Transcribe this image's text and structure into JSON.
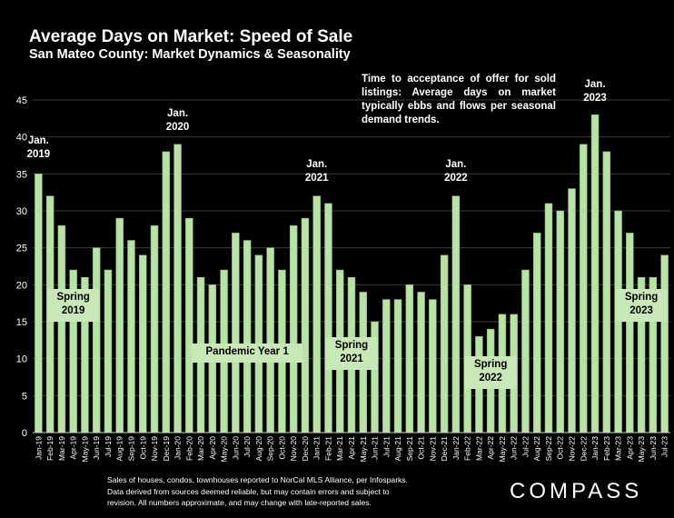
{
  "title": "Average Days on Market:  Speed of Sale",
  "subtitle": "San Mateo County: Market Dynamics & Seasonality",
  "note": "Time to acceptance of offer for sold listings: Average days on market typically ebbs and flows per seasonal demand trends.",
  "footnote": [
    "Sales of houses, condos, townhouses reported to NorCal MLS Alliance, per Infosparks.",
    "Data derived from sources deemed reliable, but may contain errors and subject to",
    "revision. All numbers approximate, and may change with late-reported sales."
  ],
  "logo": "COMPASS",
  "colors": {
    "background": "#000000",
    "bar": "#b9e2a6",
    "bar_edge": "#7fb36a",
    "label_box": "#c9e8b8",
    "text": "#ffffff"
  },
  "chart_data": {
    "type": "bar",
    "title": "Average Days on Market:  Speed of Sale",
    "subtitle": "San Mateo County: Market Dynamics & Seasonality",
    "xlabel": "",
    "ylabel": "",
    "ylim": [
      0,
      45
    ],
    "yticks": [
      0,
      5,
      10,
      15,
      20,
      25,
      30,
      35,
      40,
      45
    ],
    "grid": true,
    "legend": "none",
    "categories": [
      "Jan-19",
      "Feb-19",
      "Mar-19",
      "Apr-19",
      "May-19",
      "Jun-19",
      "Jul-19",
      "Aug-19",
      "Sep-19",
      "Oct-19",
      "Nov-19",
      "Dec-19",
      "Jan-20",
      "Feb-20",
      "Mar-20",
      "Apr-20",
      "May-20",
      "Jun-20",
      "Jul-20",
      "Aug-20",
      "Sep-20",
      "Oct-20",
      "Nov-20",
      "Dec-20",
      "Jan-21",
      "Feb-21",
      "Mar-21",
      "Apr-21",
      "May-21",
      "Jun-21",
      "Jul-21",
      "Aug-21",
      "Sep-21",
      "Oct-21",
      "Nov-21",
      "Dec-21",
      "Jan-22",
      "Feb-22",
      "Mar-22",
      "Apr-22",
      "May-22",
      "Jun-22",
      "Jul-22",
      "Aug-22",
      "Sep-22",
      "Oct-22",
      "Nov-22",
      "Dec-22",
      "Jan-23",
      "Feb-23",
      "Mar-23",
      "Apr-23",
      "May-23",
      "Jun-23",
      "Jul-23"
    ],
    "values": [
      35,
      32,
      28,
      22,
      21,
      25,
      22,
      29,
      26,
      24,
      28,
      38,
      39,
      29,
      21,
      20,
      22,
      27,
      26,
      24,
      25,
      22,
      28,
      29,
      32,
      31,
      22,
      21,
      19,
      15,
      18,
      18,
      20,
      19,
      18,
      24,
      32,
      20,
      13,
      14,
      16,
      16,
      22,
      27,
      31,
      30,
      33,
      39,
      43,
      38,
      30,
      27,
      21,
      21,
      24
    ],
    "annotations": [
      {
        "text": [
          "Jan.",
          "2019"
        ],
        "at": "Jan-19",
        "style": "plain"
      },
      {
        "text": [
          "Jan.",
          "2020"
        ],
        "at": "Jan-20",
        "style": "plain"
      },
      {
        "text": [
          "Jan.",
          "2021"
        ],
        "at": "Jan-21",
        "style": "plain"
      },
      {
        "text": [
          "Jan.",
          "2022"
        ],
        "at": "Jan-22",
        "style": "plain"
      },
      {
        "text": [
          "Jan.",
          "2023"
        ],
        "at": "Jan-23",
        "style": "plain"
      },
      {
        "text": [
          "Spring",
          "2019"
        ],
        "at": "Apr-19",
        "style": "box"
      },
      {
        "text": [
          "Pandemic Year 1"
        ],
        "at": "Jul-20",
        "style": "box"
      },
      {
        "text": [
          "Spring",
          "2021"
        ],
        "at": "Apr-21",
        "style": "box"
      },
      {
        "text": [
          "Spring",
          "2022"
        ],
        "at": "Apr-22",
        "style": "box"
      },
      {
        "text": [
          "Spring",
          "2023"
        ],
        "at": "May-23",
        "style": "box"
      }
    ]
  }
}
